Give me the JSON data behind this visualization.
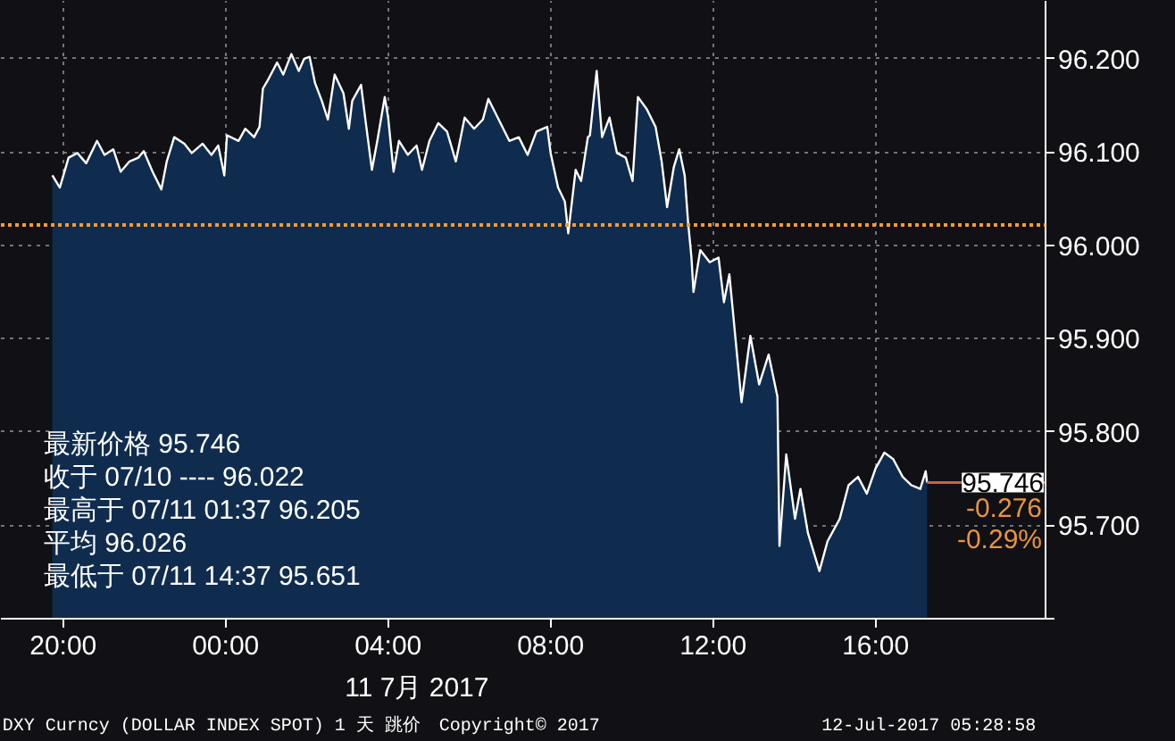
{
  "chart_data": {
    "type": "area",
    "x": [
      "2017-07-10T19:44",
      "2017-07-10T19:55",
      "2017-07-10T20:08",
      "2017-07-10T20:21",
      "2017-07-10T20:34",
      "2017-07-10T20:50",
      "2017-07-10T21:01",
      "2017-07-10T21:14",
      "2017-07-10T21:25",
      "2017-07-10T21:38",
      "2017-07-10T21:51",
      "2017-07-10T21:59",
      "2017-07-10T22:12",
      "2017-07-10T22:25",
      "2017-07-10T22:33",
      "2017-07-10T22:44",
      "2017-07-10T22:59",
      "2017-07-10T23:10",
      "2017-07-10T23:26",
      "2017-07-10T23:39",
      "2017-07-10T23:49",
      "2017-07-10T23:58",
      "2017-07-11T00:02",
      "2017-07-11T00:19",
      "2017-07-11T00:29",
      "2017-07-11T00:42",
      "2017-07-11T00:50",
      "2017-07-11T00:55",
      "2017-07-11T01:03",
      "2017-07-11T01:16",
      "2017-07-11T01:25",
      "2017-07-11T01:37",
      "2017-07-11T01:48",
      "2017-07-11T01:56",
      "2017-07-11T02:04",
      "2017-07-11T02:12",
      "2017-07-11T02:22",
      "2017-07-11T02:31",
      "2017-07-11T02:41",
      "2017-07-11T02:54",
      "2017-07-11T03:02",
      "2017-07-11T03:07",
      "2017-07-11T03:20",
      "2017-07-11T03:26",
      "2017-07-11T03:36",
      "2017-07-11T03:44",
      "2017-07-11T03:55",
      "2017-07-11T04:00",
      "2017-07-11T04:08",
      "2017-07-11T04:16",
      "2017-07-11T04:29",
      "2017-07-11T04:42",
      "2017-07-11T04:50",
      "2017-07-11T05:01",
      "2017-07-11T05:14",
      "2017-07-11T05:27",
      "2017-07-11T05:40",
      "2017-07-11T05:53",
      "2017-07-11T06:07",
      "2017-07-11T06:20",
      "2017-07-11T06:28",
      "2017-07-11T06:46",
      "2017-07-11T06:59",
      "2017-07-11T07:13",
      "2017-07-11T07:26",
      "2017-07-11T07:39",
      "2017-07-11T07:55",
      "2017-07-11T08:00",
      "2017-07-11T08:11",
      "2017-07-11T08:21",
      "2017-07-11T08:26",
      "2017-07-11T08:37",
      "2017-07-11T08:45",
      "2017-07-11T08:55",
      "2017-07-11T08:58",
      "2017-07-11T09:08",
      "2017-07-11T09:16",
      "2017-07-11T09:27",
      "2017-07-11T09:38",
      "2017-07-11T09:51",
      "2017-07-11T10:01",
      "2017-07-11T10:09",
      "2017-07-11T10:22",
      "2017-07-11T10:35",
      "2017-07-11T10:44",
      "2017-07-11T10:52",
      "2017-07-11T11:02",
      "2017-07-11T11:10",
      "2017-07-11T11:18",
      "2017-07-11T11:23",
      "2017-07-11T11:28",
      "2017-07-11T11:31",
      "2017-07-11T11:41",
      "2017-07-11T11:55",
      "2017-07-11T12:08",
      "2017-07-11T12:16",
      "2017-07-11T12:24",
      "2017-07-11T12:29",
      "2017-07-11T12:37",
      "2017-07-11T12:42",
      "2017-07-11T12:55",
      "2017-07-11T13:08",
      "2017-07-11T13:22",
      "2017-07-11T13:35",
      "2017-07-11T13:38",
      "2017-07-11T13:48",
      "2017-07-11T14:01",
      "2017-07-11T14:09",
      "2017-07-11T14:20",
      "2017-07-11T14:37",
      "2017-07-11T14:49",
      "2017-07-11T15:07",
      "2017-07-11T15:20",
      "2017-07-11T15:34",
      "2017-07-11T15:47",
      "2017-07-11T16:00",
      "2017-07-11T16:13",
      "2017-07-11T16:26",
      "2017-07-11T16:40",
      "2017-07-11T16:53",
      "2017-07-11T17:06",
      "2017-07-11T17:14",
      "2017-07-11T17:16"
    ],
    "series": [
      {
        "color": "#ffffff",
        "values": [
          96.075,
          96.062,
          96.094,
          96.099,
          96.088,
          96.112,
          96.097,
          96.103,
          96.079,
          96.09,
          96.094,
          96.101,
          96.079,
          96.06,
          96.09,
          96.116,
          96.109,
          96.099,
          96.109,
          96.097,
          96.107,
          96.075,
          96.118,
          96.112,
          96.125,
          96.116,
          96.127,
          96.168,
          96.178,
          96.196,
          96.183,
          96.205,
          96.187,
          96.2,
          96.202,
          96.174,
          96.155,
          96.135,
          96.183,
          96.163,
          96.125,
          96.155,
          96.172,
          96.137,
          96.081,
          96.112,
          96.159,
          96.137,
          96.079,
          96.112,
          96.097,
          96.107,
          96.081,
          96.112,
          96.131,
          96.122,
          96.09,
          96.137,
          96.125,
          96.135,
          96.157,
          96.131,
          96.112,
          96.116,
          96.097,
          96.122,
          96.127,
          96.099,
          96.062,
          96.047,
          96.013,
          96.081,
          96.069,
          96.116,
          96.118,
          96.187,
          96.116,
          96.137,
          96.099,
          96.094,
          96.069,
          96.159,
          96.146,
          96.127,
          96.09,
          96.041,
          96.084,
          96.103,
          96.075,
          96.025,
          95.987,
          95.95,
          95.995,
          95.982,
          95.987,
          95.939,
          95.969,
          95.931,
          95.87,
          95.832,
          95.903,
          95.851,
          95.883,
          95.838,
          95.678,
          95.776,
          95.707,
          95.739,
          95.692,
          95.651,
          95.683,
          95.707,
          95.743,
          95.752,
          95.734,
          95.761,
          95.778,
          95.771,
          95.752,
          95.743,
          95.739,
          95.758,
          95.746
        ]
      }
    ],
    "xlim": [
      "2017-07-10T18:28",
      "2017-07-11T20:11"
    ],
    "xticks": [
      {
        "value": "2017-07-10T20:00",
        "label": "20:00"
      },
      {
        "value": "2017-07-11T00:00",
        "label": "00:00"
      },
      {
        "value": "2017-07-11T04:00",
        "label": "04:00"
      },
      {
        "value": "2017-07-11T08:00",
        "label": "08:00"
      },
      {
        "value": "2017-07-11T12:00",
        "label": "12:00"
      },
      {
        "value": "2017-07-11T16:00",
        "label": "16:00"
      }
    ],
    "ylim": [
      95.6,
      96.262
    ],
    "yticks": [
      {
        "value": 95.6,
        "label": null
      },
      {
        "value": 95.7,
        "label": "95.700"
      },
      {
        "value": 95.8,
        "label": "95.800"
      },
      {
        "value": 95.9,
        "label": "95.900"
      },
      {
        "value": 96.0,
        "label": "96.000"
      },
      {
        "value": 96.1,
        "label": "96.100"
      },
      {
        "value": 96.2,
        "label": "96.200"
      }
    ],
    "grid": true,
    "ref_lines": [
      {
        "axis": "y",
        "value": 96.022,
        "color": "#f39c34",
        "line_style": "dotted"
      },
      {
        "axis": "y",
        "value": 95.746,
        "label": "95.746",
        "color": "#c8643c"
      }
    ],
    "annotations": [
      "最新价格 95.746",
      "收于 07/10 ---- 96.022",
      "最高于 07/11 01:37 96.205",
      "平均 96.026",
      "最低于 07/11 14:37 95.651",
      "-0.276",
      "-0.29%",
      "11 7月 2017",
      "DXY Curncy (DOLLAR INDEX SPOT) 1 天  跳价",
      "Copyright© 2017",
      "12-Jul-2017 05:28:58"
    ]
  }
}
